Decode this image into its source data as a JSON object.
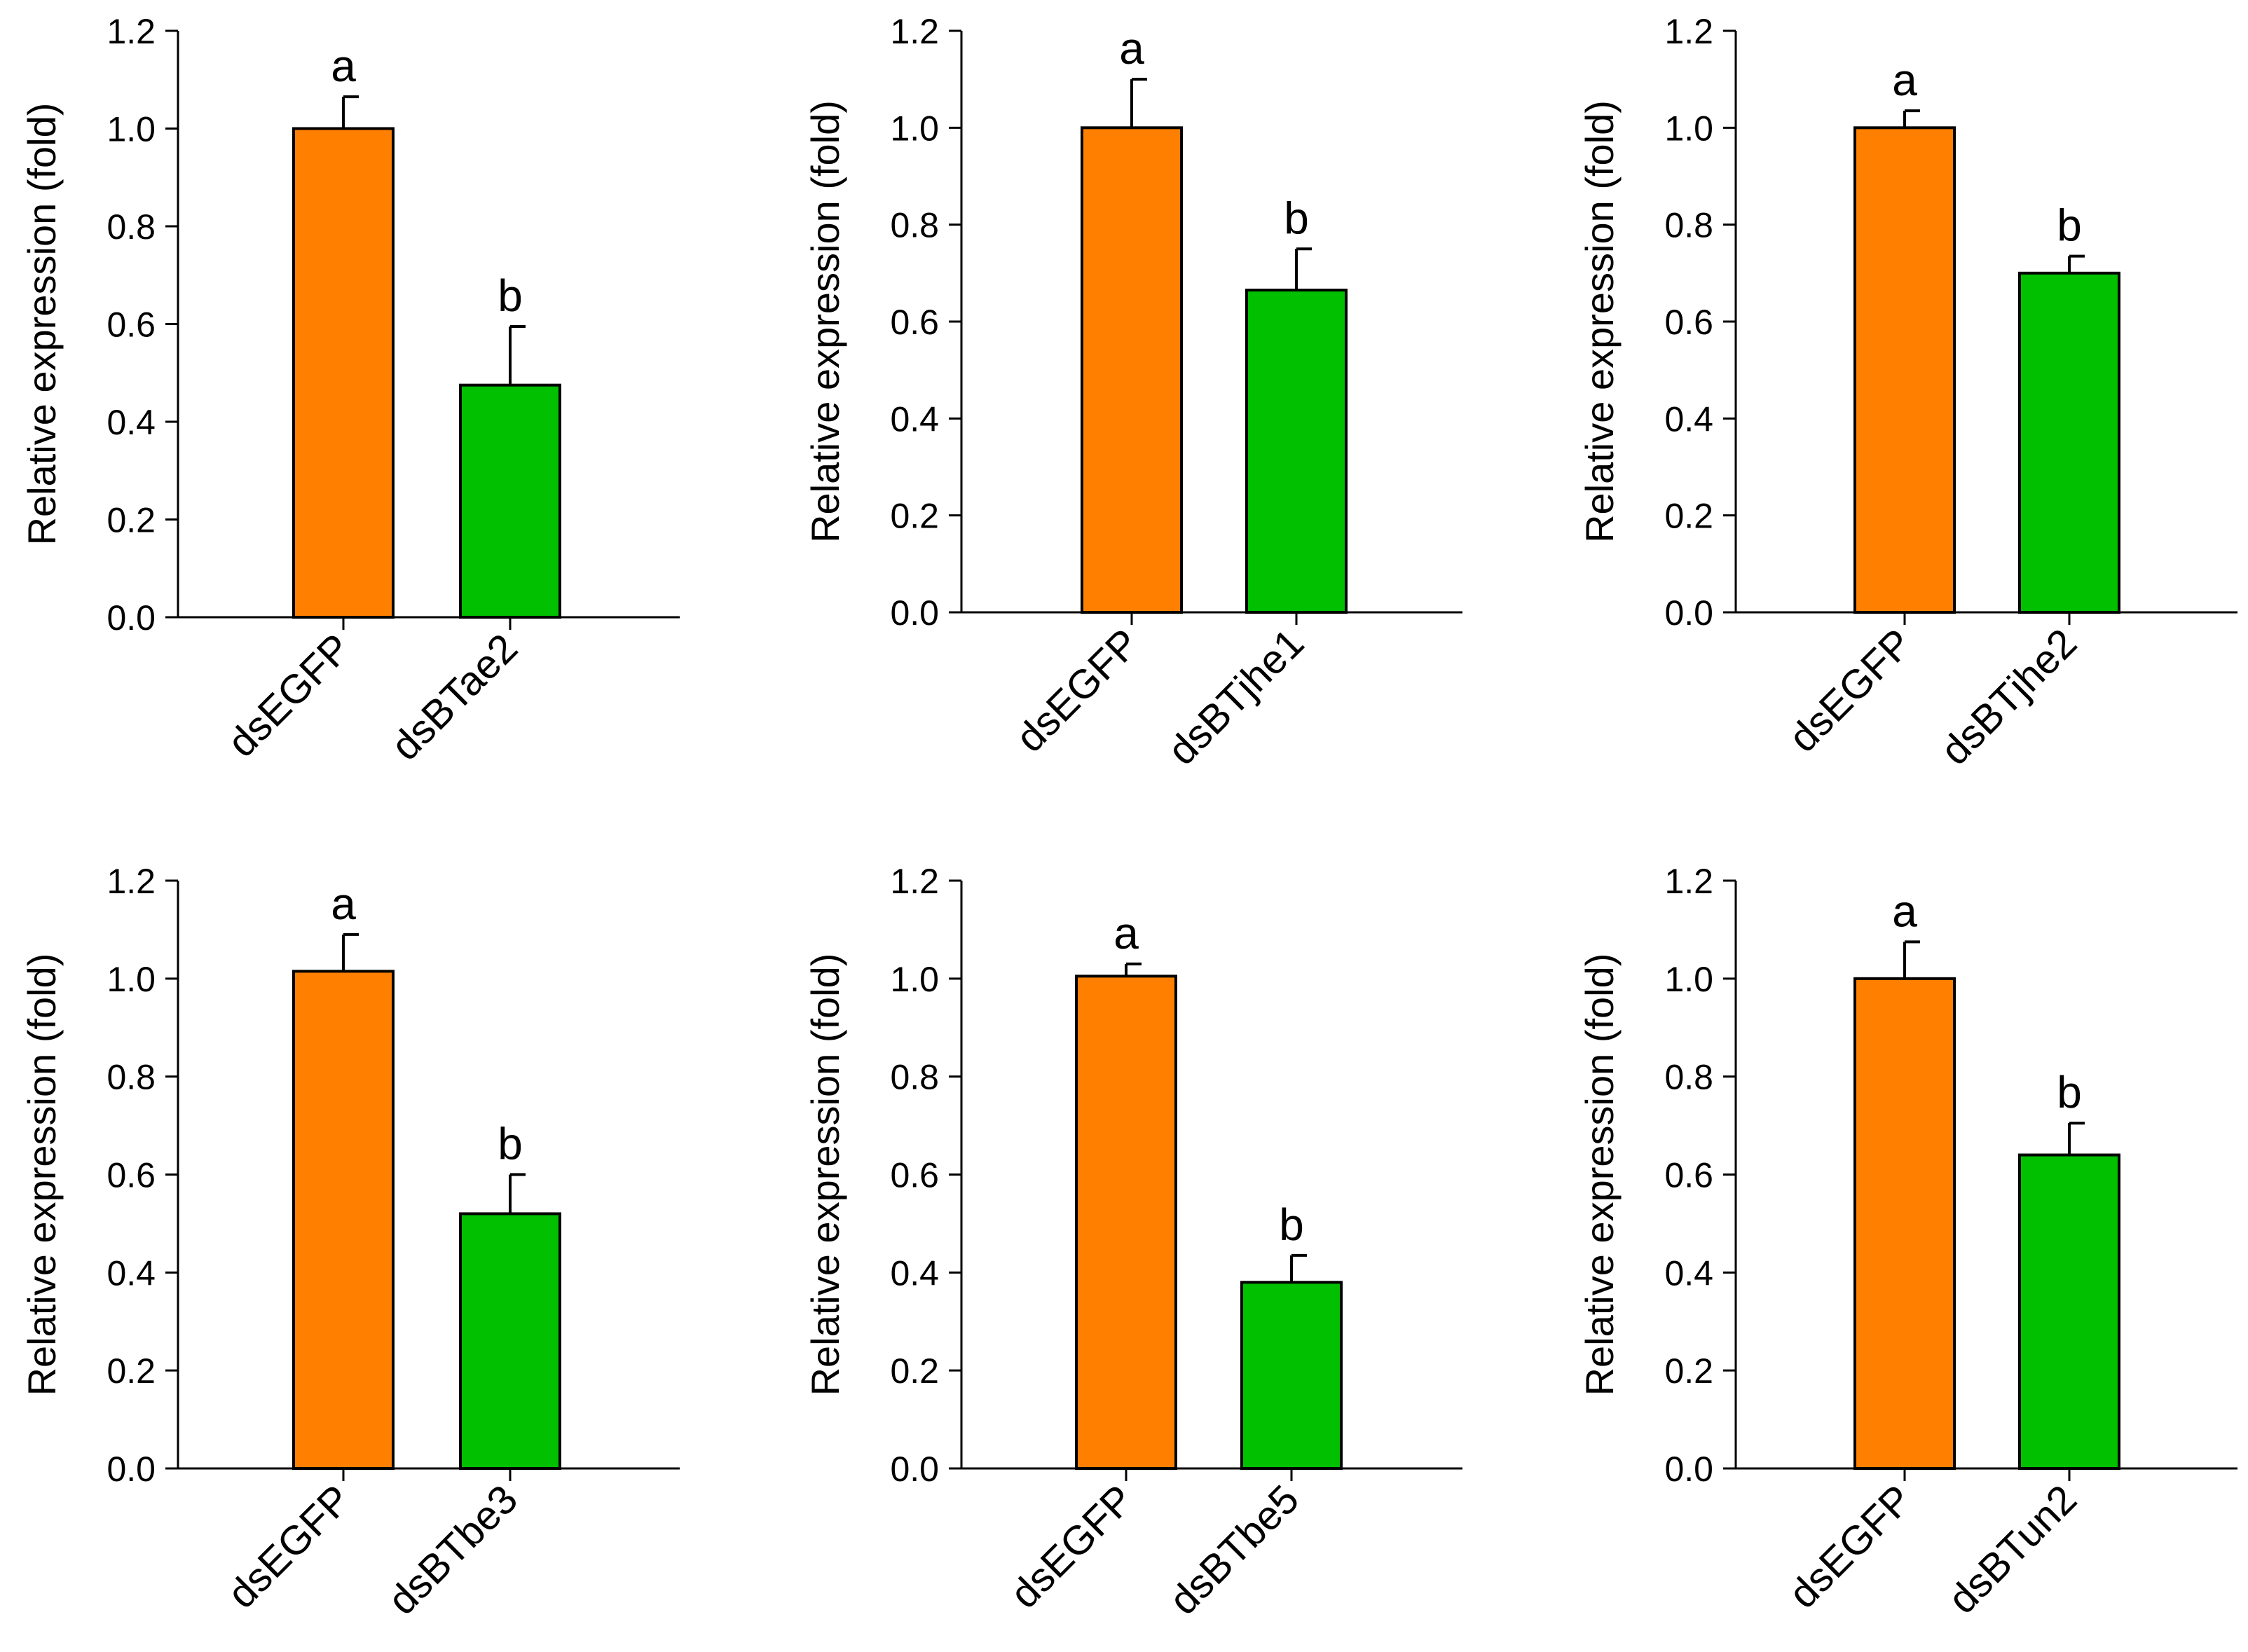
{
  "figure": {
    "colors": {
      "control": "#FF8000",
      "treatment": "#00C000",
      "axis": "#000000"
    }
  },
  "chart_data": [
    {
      "type": "bar",
      "categories": [
        "dsEGFP",
        "dsBTae2"
      ],
      "values": [
        1.0,
        0.475
      ],
      "errors": [
        0.065,
        0.12
      ],
      "significance": [
        "a",
        "b"
      ],
      "title": "",
      "xlabel": "",
      "ylabel": "Relative expression (fold)",
      "ylim": [
        0,
        1.2
      ],
      "yticks": [
        0.0,
        0.2,
        0.4,
        0.6,
        0.8,
        1.0,
        1.2
      ],
      "ytick_labels": [
        "0.0",
        "0.2",
        "0.4",
        "0.6",
        "0.8",
        "1.0",
        "1.2"
      ]
    },
    {
      "type": "bar",
      "categories": [
        "dsEGFP",
        "dsBTjhe1"
      ],
      "values": [
        1.0,
        0.665
      ],
      "errors": [
        0.1,
        0.085
      ],
      "significance": [
        "a",
        "b"
      ],
      "title": "",
      "xlabel": "",
      "ylabel": "Relative expression (fold)",
      "ylim": [
        0,
        1.2
      ],
      "yticks": [
        0.0,
        0.2,
        0.4,
        0.6,
        0.8,
        1.0,
        1.2
      ],
      "ytick_labels": [
        "0.0",
        "0.2",
        "0.4",
        "0.6",
        "0.8",
        "1.0",
        "1.2"
      ]
    },
    {
      "type": "bar",
      "categories": [
        "dsEGFP",
        "dsBTjhe2"
      ],
      "values": [
        1.0,
        0.7
      ],
      "errors": [
        0.035,
        0.035
      ],
      "significance": [
        "a",
        "b"
      ],
      "title": "",
      "xlabel": "",
      "ylabel": "Relative expression (fold)",
      "ylim": [
        0,
        1.2
      ],
      "yticks": [
        0.0,
        0.2,
        0.4,
        0.6,
        0.8,
        1.0,
        1.2
      ],
      "ytick_labels": [
        "0.0",
        "0.2",
        "0.4",
        "0.6",
        "0.8",
        "1.0",
        "1.2"
      ]
    },
    {
      "type": "bar",
      "categories": [
        "dsEGFP",
        "dsBTbe3"
      ],
      "values": [
        1.015,
        0.52
      ],
      "errors": [
        0.075,
        0.08
      ],
      "significance": [
        "a",
        "b"
      ],
      "title": "",
      "xlabel": "",
      "ylabel": "Relative expression (fold)",
      "ylim": [
        0,
        1.2
      ],
      "yticks": [
        0.0,
        0.2,
        0.4,
        0.6,
        0.8,
        1.0,
        1.2
      ],
      "ytick_labels": [
        "0.0",
        "0.2",
        "0.4",
        "0.6",
        "0.8",
        "1.0",
        "1.2"
      ]
    },
    {
      "type": "bar",
      "categories": [
        "dsEGFP",
        "dsBTbe5"
      ],
      "values": [
        1.005,
        0.38
      ],
      "errors": [
        0.025,
        0.055
      ],
      "significance": [
        "a",
        "b"
      ],
      "title": "",
      "xlabel": "",
      "ylabel": "Relative expression (fold)",
      "ylim": [
        0,
        1.2
      ],
      "yticks": [
        0.0,
        0.2,
        0.4,
        0.6,
        0.8,
        1.0,
        1.2
      ],
      "ytick_labels": [
        "0.0",
        "0.2",
        "0.4",
        "0.6",
        "0.8",
        "1.0",
        "1.2"
      ]
    },
    {
      "type": "bar",
      "categories": [
        "dsEGFP",
        "dsBTun2"
      ],
      "values": [
        1.0,
        0.64
      ],
      "errors": [
        0.075,
        0.065
      ],
      "significance": [
        "a",
        "b"
      ],
      "title": "",
      "xlabel": "",
      "ylabel": "Relative expression (fold)",
      "ylim": [
        0,
        1.2
      ],
      "yticks": [
        0.0,
        0.2,
        0.4,
        0.6,
        0.8,
        1.0,
        1.2
      ],
      "ytick_labels": [
        "0.0",
        "0.2",
        "0.4",
        "0.6",
        "0.8",
        "1.0",
        "1.2"
      ]
    }
  ]
}
